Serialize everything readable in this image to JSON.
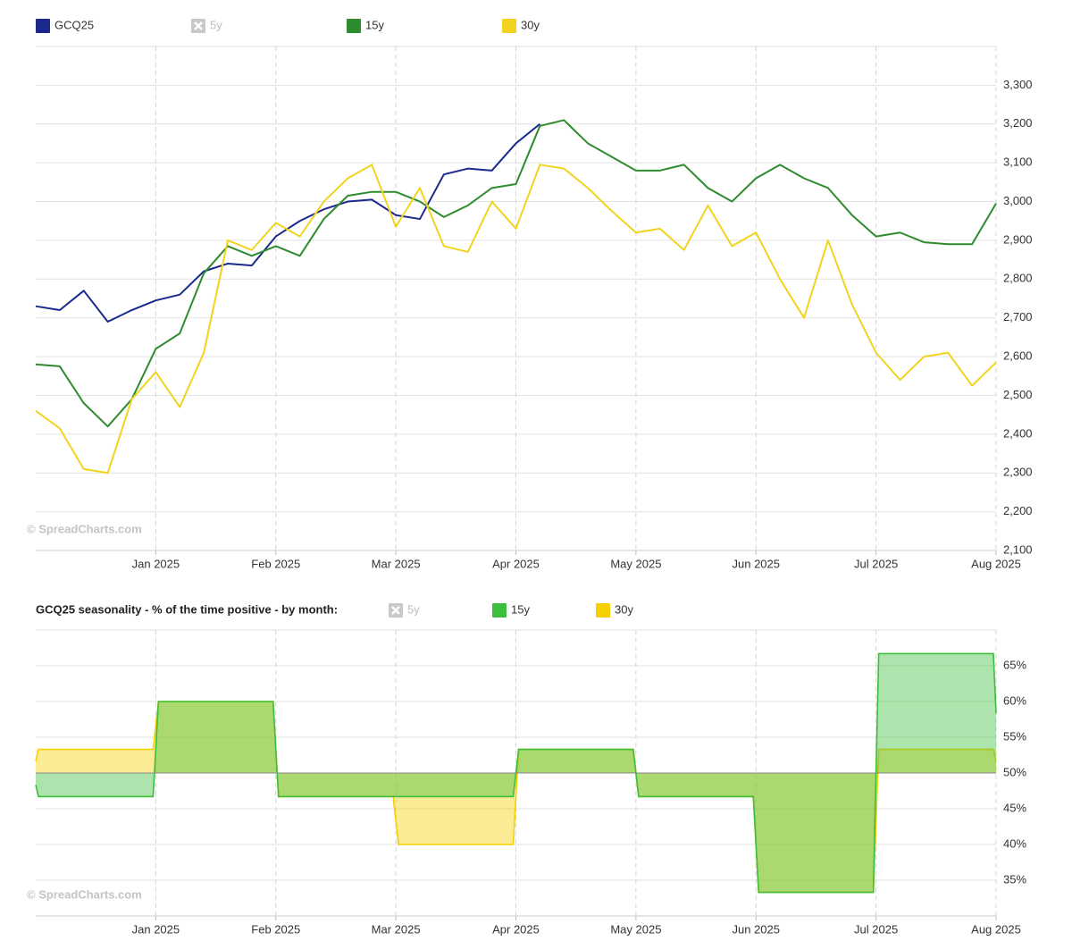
{
  "chart_data": [
    {
      "type": "line",
      "x": [
        0,
        0.2,
        0.4,
        0.6,
        0.8,
        1,
        1.2,
        1.4,
        1.6,
        1.8,
        2,
        2.2,
        2.4,
        2.6,
        2.8,
        3,
        3.2,
        3.4,
        3.6,
        3.8,
        4,
        4.2,
        4.4,
        4.6,
        4.8,
        5,
        5.2,
        5.4,
        5.6,
        5.8,
        6,
        6.2,
        6.4,
        6.6,
        6.8,
        7,
        7.2,
        7.4,
        7.6,
        7.8,
        8
      ],
      "xlim": [
        0,
        8
      ],
      "xticks": [
        {
          "value": 1,
          "label": "Jan 2025"
        },
        {
          "value": 2,
          "label": "Feb 2025"
        },
        {
          "value": 3,
          "label": "Mar 2025"
        },
        {
          "value": 4,
          "label": "Apr 2025"
        },
        {
          "value": 5,
          "label": "May 2025"
        },
        {
          "value": 6,
          "label": "Jun 2025"
        },
        {
          "value": 7,
          "label": "Jul 2025"
        },
        {
          "value": 8,
          "label": "Aug 2025"
        }
      ],
      "ylim": [
        2100,
        3400
      ],
      "yticks": [
        {
          "value": 2100,
          "label": "2,100"
        },
        {
          "value": 2200,
          "label": "2,200"
        },
        {
          "value": 2300,
          "label": "2,300"
        },
        {
          "value": 2400,
          "label": "2,400"
        },
        {
          "value": 2500,
          "label": "2,500"
        },
        {
          "value": 2600,
          "label": "2,600"
        },
        {
          "value": 2700,
          "label": "2,700"
        },
        {
          "value": 2800,
          "label": "2,800"
        },
        {
          "value": 2900,
          "label": "2,900"
        },
        {
          "value": 3000,
          "label": "3,000"
        },
        {
          "value": 3100,
          "label": "3,100"
        },
        {
          "value": 3200,
          "label": "3,200"
        },
        {
          "value": 3300,
          "label": "3,300"
        }
      ],
      "grid": true,
      "watermark": "© SpreadCharts.com",
      "series": [
        {
          "name": "GCQ25",
          "color": "#1a2a8c",
          "values": [
            2730,
            2720,
            2770,
            2690,
            2720,
            2745,
            2760,
            2820,
            2840,
            2835,
            2910,
            2950,
            2980,
            3000,
            3005,
            2965,
            2955,
            3070,
            3085,
            3080,
            3150,
            3200,
            null,
            null,
            null,
            null,
            null,
            null,
            null,
            null,
            null,
            null,
            null,
            null,
            null,
            null,
            null,
            null,
            null,
            null,
            null
          ]
        },
        {
          "name": "15y",
          "color": "#2e8b2e",
          "values": [
            2580,
            2575,
            2480,
            2420,
            2490,
            2620,
            2660,
            2815,
            2885,
            2860,
            2885,
            2860,
            2955,
            3015,
            3025,
            3025,
            3000,
            2960,
            2990,
            3035,
            3045,
            3195,
            3210,
            3150,
            3115,
            3080,
            3080,
            3095,
            3035,
            3000,
            3060,
            3095,
            3060,
            3035,
            2965,
            2910,
            2920,
            2895,
            2890,
            2890,
            2995
          ]
        },
        {
          "name": "30y",
          "color": "#f2d31f",
          "values": [
            2460,
            2415,
            2310,
            2300,
            2490,
            2560,
            2470,
            2610,
            2900,
            2875,
            2945,
            2910,
            3000,
            3060,
            3095,
            2935,
            3035,
            2885,
            2870,
            3000,
            2930,
            3095,
            3085,
            3035,
            2975,
            2920,
            2930,
            2875,
            2990,
            2885,
            2920,
            2800,
            2700,
            2900,
            2735,
            2610,
            2540,
            2600,
            2610,
            2525,
            2585
          ]
        }
      ],
      "hidden_series": [
        {
          "name": "5y"
        }
      ]
    },
    {
      "type": "step_area",
      "title": "GCQ25 seasonality - % of the time positive - by month:",
      "x": [
        0,
        1,
        2,
        3,
        4,
        5,
        6,
        7
      ],
      "xlim": [
        0,
        8
      ],
      "xticks": [
        {
          "value": 1,
          "label": "Jan 2025"
        },
        {
          "value": 2,
          "label": "Feb 2025"
        },
        {
          "value": 3,
          "label": "Mar 2025"
        },
        {
          "value": 4,
          "label": "Apr 2025"
        },
        {
          "value": 5,
          "label": "May 2025"
        },
        {
          "value": 6,
          "label": "Jun 2025"
        },
        {
          "value": 7,
          "label": "Jul 2025"
        },
        {
          "value": 8,
          "label": "Aug 2025"
        }
      ],
      "ylim": [
        30,
        70
      ],
      "yticks": [
        {
          "value": 35,
          "label": "35%"
        },
        {
          "value": 40,
          "label": "40%"
        },
        {
          "value": 45,
          "label": "45%"
        },
        {
          "value": 50,
          "label": "50%"
        },
        {
          "value": 55,
          "label": "55%"
        },
        {
          "value": 60,
          "label": "60%"
        },
        {
          "value": 65,
          "label": "65%"
        }
      ],
      "baseline": 50,
      "grid": true,
      "watermark": "© SpreadCharts.com",
      "series": [
        {
          "name": "15y",
          "color": "#3cbf3c",
          "values": [
            46.7,
            60,
            46.7,
            46.7,
            53.3,
            46.7,
            33.3,
            66.7
          ]
        },
        {
          "name": "30y",
          "color": "#f5d000",
          "values": [
            53.3,
            60,
            46.7,
            40,
            53.3,
            46.7,
            33.3,
            53.3
          ]
        }
      ],
      "hidden_series": [
        {
          "name": "5y"
        }
      ]
    }
  ]
}
